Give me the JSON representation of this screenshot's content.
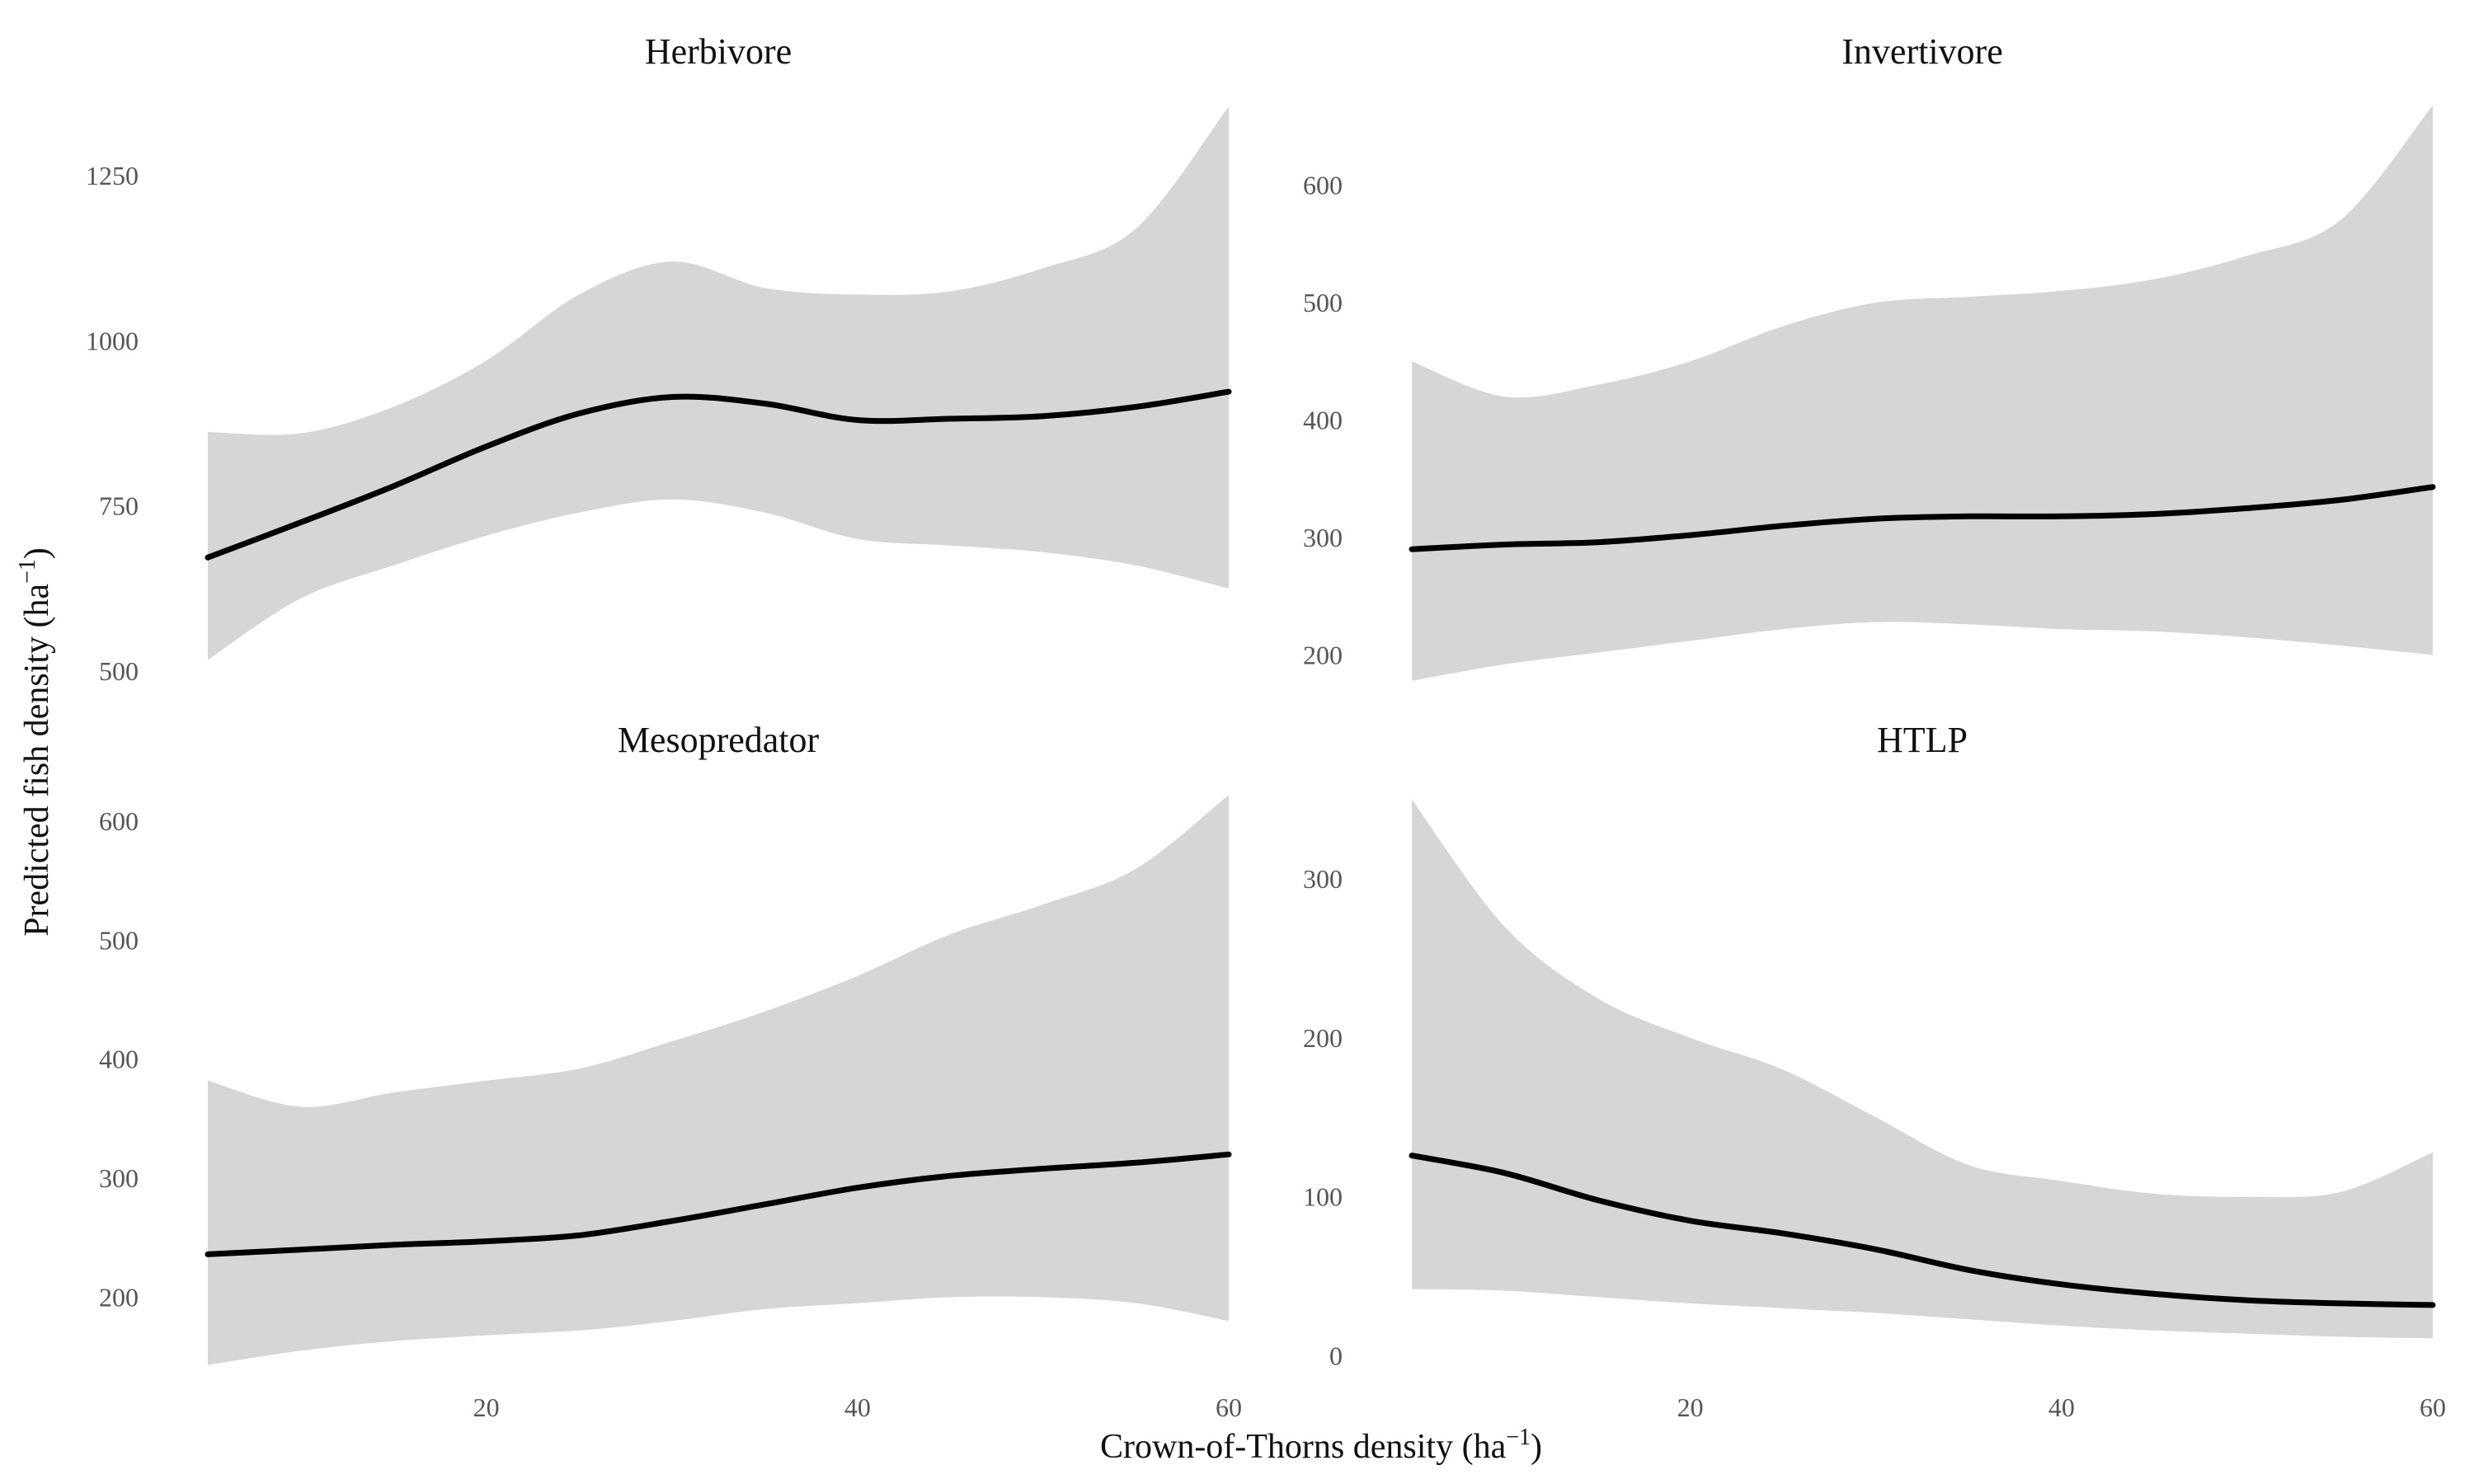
{
  "figure": {
    "xlabel": "Crown-of-Thorns density (ha",
    "xlabel_sup": "−1",
    "xlabel_end": ")",
    "ylabel": "Predicted fish density (ha",
    "ylabel_sup": "−1",
    "ylabel_end": ")",
    "ribbon_color": "#d6d6d6",
    "line_color": "#000000"
  },
  "chart_data": [
    {
      "type": "line",
      "title": "Herbivore",
      "xlim": [
        5,
        60
      ],
      "ylim": [
        480,
        1360
      ],
      "xticks": [
        20,
        40,
        60
      ],
      "yticks": [
        500,
        750,
        1000,
        1250
      ],
      "x": [
        5,
        10,
        15,
        20,
        25,
        30,
        35,
        40,
        45,
        50,
        55,
        60
      ],
      "fit": [
        672,
        725,
        780,
        840,
        890,
        915,
        905,
        880,
        882,
        886,
        900,
        923
      ],
      "lower": [
        517,
        610,
        660,
        705,
        740,
        760,
        740,
        700,
        690,
        680,
        660,
        625
      ],
      "upper": [
        862,
        860,
        900,
        970,
        1070,
        1120,
        1080,
        1070,
        1075,
        1110,
        1170,
        1355
      ]
    },
    {
      "type": "line",
      "title": "Invertivore",
      "xlim": [
        5,
        60
      ],
      "ylim": [
        175,
        670
      ],
      "xticks": [
        20,
        40,
        60
      ],
      "yticks": [
        200,
        300,
        400,
        500,
        600
      ],
      "x": [
        5,
        10,
        15,
        20,
        25,
        30,
        35,
        40,
        45,
        50,
        55,
        60
      ],
      "fit": [
        290,
        294,
        296,
        302,
        310,
        316,
        318,
        318,
        320,
        325,
        332,
        343
      ],
      "lower": [
        178,
        192,
        202,
        212,
        222,
        228,
        226,
        222,
        220,
        215,
        208,
        200
      ],
      "upper": [
        450,
        420,
        430,
        450,
        480,
        500,
        505,
        510,
        520,
        540,
        570,
        668
      ]
    },
    {
      "type": "line",
      "title": "Mesopredator",
      "xlim": [
        5,
        60
      ],
      "ylim": [
        140,
        625
      ],
      "xticks": [
        20,
        40,
        60
      ],
      "yticks": [
        200,
        300,
        400,
        500,
        600
      ],
      "x": [
        5,
        10,
        15,
        20,
        25,
        30,
        35,
        40,
        45,
        50,
        55,
        60
      ],
      "fit": [
        236,
        240,
        244,
        247,
        252,
        264,
        278,
        292,
        302,
        308,
        313,
        320
      ],
      "lower": [
        143,
        155,
        163,
        168,
        172,
        180,
        190,
        195,
        200,
        200,
        195,
        180
      ],
      "upper": [
        382,
        360,
        372,
        382,
        392,
        415,
        440,
        470,
        505,
        530,
        560,
        622
      ]
    },
    {
      "type": "line",
      "title": "HTLP",
      "xlim": [
        5,
        60
      ],
      "ylim": [
        -8,
        355
      ],
      "xticks": [
        20,
        40,
        60
      ],
      "yticks": [
        0,
        100,
        200,
        300
      ],
      "x": [
        5,
        10,
        15,
        20,
        25,
        30,
        35,
        40,
        45,
        50,
        55,
        60
      ],
      "fit": [
        126,
        115,
        98,
        85,
        77,
        67,
        54,
        45,
        39,
        35,
        33,
        32
      ],
      "lower": [
        42,
        41,
        37,
        33,
        30,
        27,
        23,
        19,
        16,
        14,
        12,
        11
      ],
      "upper": [
        350,
        270,
        225,
        200,
        180,
        150,
        120,
        110,
        102,
        100,
        103,
        128
      ]
    }
  ]
}
